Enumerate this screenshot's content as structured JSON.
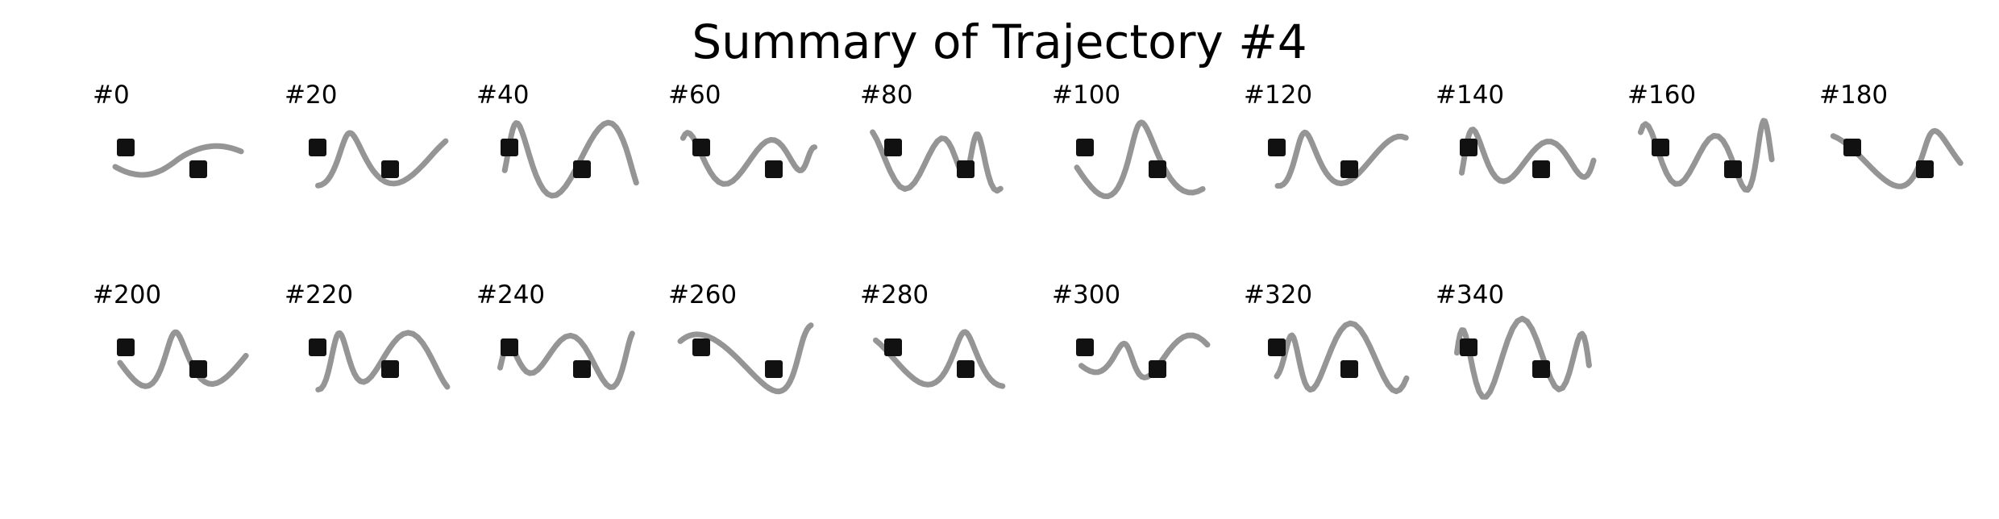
{
  "title": "Summary of Trajectory #4",
  "panels": [
    {
      "label": "#0"
    },
    {
      "label": "#20"
    },
    {
      "label": "#40"
    },
    {
      "label": "#60"
    },
    {
      "label": "#80"
    },
    {
      "label": "#100"
    },
    {
      "label": "#120"
    },
    {
      "label": "#140"
    },
    {
      "label": "#160"
    },
    {
      "label": "#180"
    },
    {
      "label": "#200"
    },
    {
      "label": "#220"
    },
    {
      "label": "#240"
    },
    {
      "label": "#260"
    },
    {
      "label": "#280"
    },
    {
      "label": "#300"
    },
    {
      "label": "#320"
    },
    {
      "label": "#340"
    }
  ]
}
